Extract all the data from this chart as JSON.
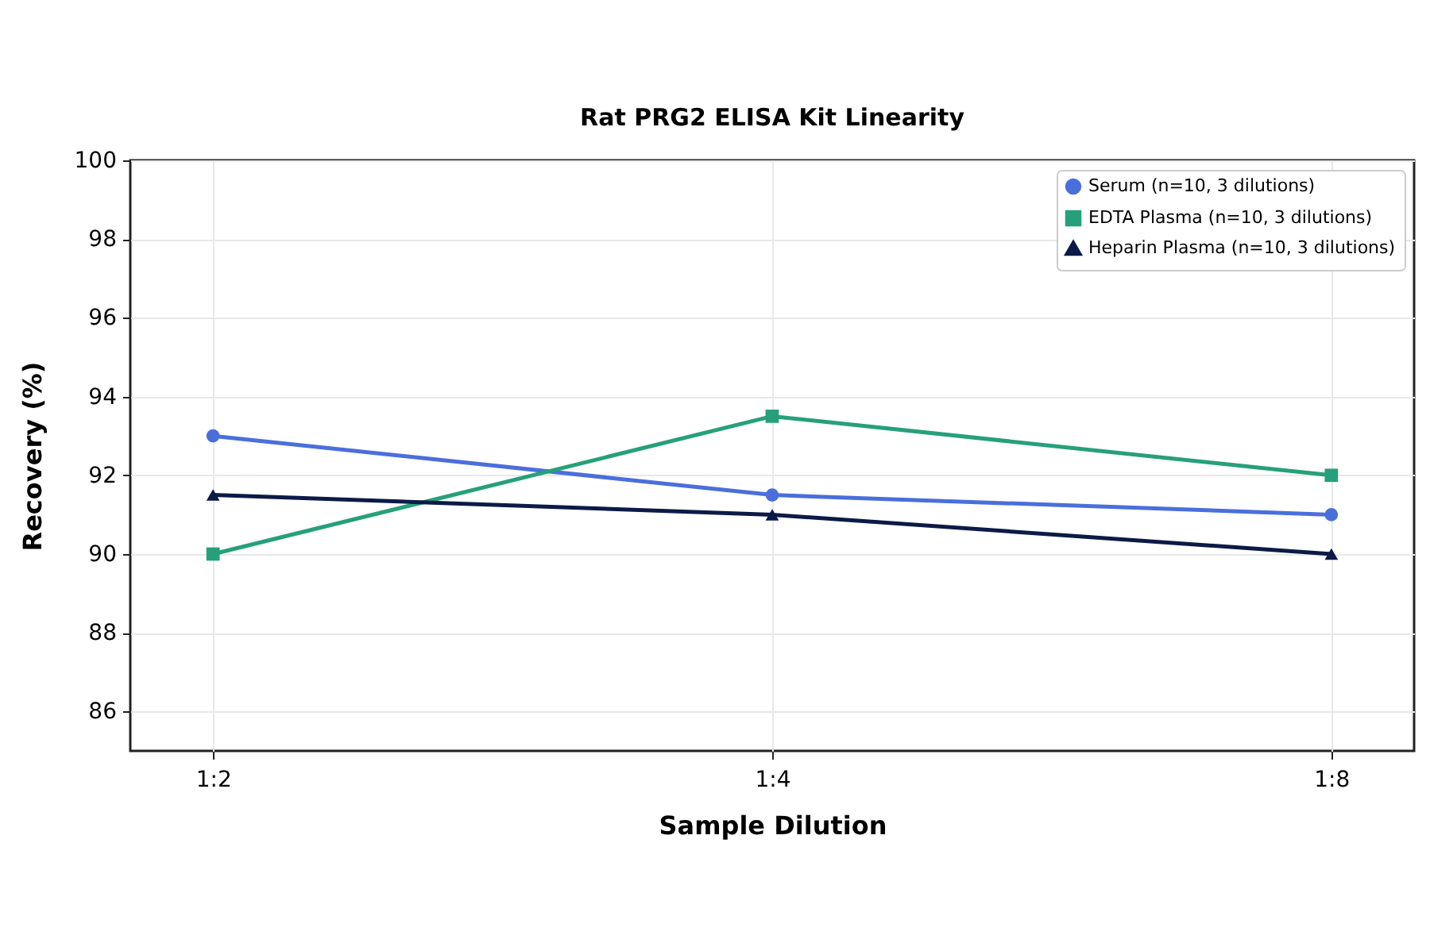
{
  "chart_data": {
    "type": "line",
    "title": "Rat PRG2 ELISA Kit Linearity",
    "xlabel": "Sample Dilution",
    "ylabel": "Recovery (%)",
    "categories": [
      "1:2",
      "1:4",
      "1:8"
    ],
    "series": [
      {
        "name": "Serum (n=10, 3 dilutions)",
        "color": "#4a6fdc",
        "marker": "circle",
        "values": [
          93,
          91.5,
          91
        ]
      },
      {
        "name": "EDTA Plasma (n=10, 3 dilutions)",
        "color": "#26a07a",
        "marker": "square",
        "values": [
          90,
          93.5,
          92
        ]
      },
      {
        "name": "Heparin Plasma (n=10, 3 dilutions)",
        "color": "#0c1a47",
        "marker": "triangle",
        "values": [
          91.5,
          91,
          90
        ]
      }
    ],
    "ylim": [
      85,
      100
    ],
    "yticks": [
      86,
      88,
      90,
      92,
      94,
      96,
      98,
      100
    ],
    "grid": true,
    "legend": "top right",
    "line_style": "solid"
  }
}
